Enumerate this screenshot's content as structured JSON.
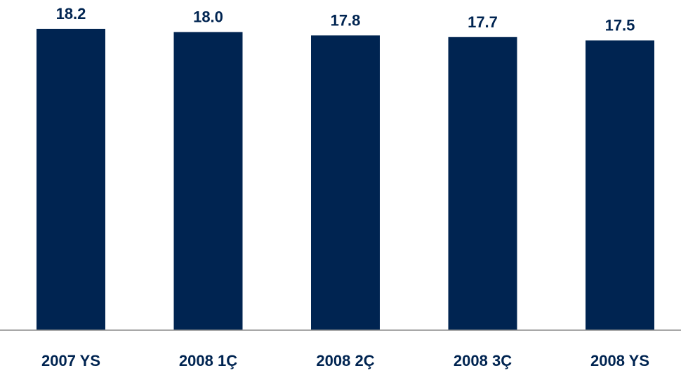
{
  "chart_data": {
    "type": "bar",
    "categories": [
      "2007 YS",
      "2008 1Ç",
      "2008 2Ç",
      "2008 3Ç",
      "2008 YS"
    ],
    "values": [
      18.2,
      18.0,
      17.8,
      17.7,
      17.5
    ],
    "data_labels": [
      "18.2",
      "18.0",
      "17.8",
      "17.7",
      "17.5"
    ],
    "title": "",
    "xlabel": "",
    "ylabel": "",
    "grid": false,
    "legend": "none",
    "colors": {
      "bar": "#002451",
      "labels": "#002451",
      "axis": "#8c8c8c"
    }
  }
}
